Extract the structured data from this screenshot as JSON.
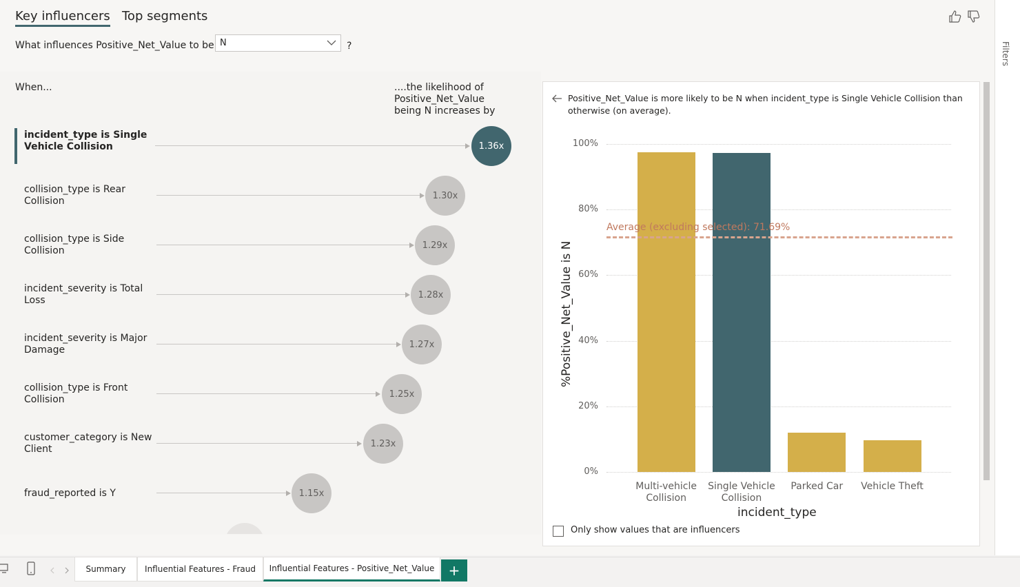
{
  "tabs": [
    {
      "label": "Key influencers",
      "active": true
    },
    {
      "label": "Top segments",
      "active": false
    }
  ],
  "filters_label": "Filters",
  "question": {
    "prefix": "What influences Positive_Net_Value to be",
    "selected": "N",
    "suffix": "?"
  },
  "left_panel": {
    "when_label": "When...",
    "likelihood_label": "....the likelihood of Positive_Net_Value being N increases by"
  },
  "influencers": [
    {
      "label": "incident_type is Single Vehicle Collision",
      "value": "1.36x",
      "selected": true
    },
    {
      "label": "collision_type is Rear Collision",
      "value": "1.30x"
    },
    {
      "label": "collision_type is Side Collision",
      "value": "1.29x"
    },
    {
      "label": "incident_severity is Total Loss",
      "value": "1.28x"
    },
    {
      "label": "incident_severity is Major Damage",
      "value": "1.27x"
    },
    {
      "label": "collision_type is Front Collision",
      "value": "1.25x"
    },
    {
      "label": "customer_category is New Client",
      "value": "1.23x"
    },
    {
      "label": "fraud_reported is Y",
      "value": "1.15x"
    }
  ],
  "detail": {
    "description": "Positive_Net_Value is more likely to be N when incident_type is Single Vehicle Collision than otherwise (on average).",
    "checkbox_label": "Only show values that are influencers"
  },
  "chart_data": {
    "type": "bar",
    "xlabel": "incident_type",
    "ylabel": "%Positive_Net_Value is N",
    "categories": [
      "Multi-vehicle Collision",
      "Single Vehicle Collision",
      "Parked Car",
      "Vehicle Theft"
    ],
    "values": [
      97.5,
      97.3,
      11.9,
      9.6
    ],
    "highlighted": "Single Vehicle Collision",
    "colors": {
      "default": "#d4af4a",
      "highlight": "#41666e",
      "average": "#d8a48e"
    },
    "ylim": [
      0,
      100
    ],
    "yticks": [
      "0%",
      "20%",
      "40%",
      "60%",
      "80%",
      "100%"
    ],
    "average": {
      "label": "Average (excluding selected): 71.69%",
      "value": 71.69
    }
  },
  "page_tabs": [
    {
      "label": "Summary",
      "active": false
    },
    {
      "label": "Influential Features - Fraud",
      "active": false
    },
    {
      "label": "Influential Features - Positive_Net_Value",
      "active": true
    }
  ],
  "add_page_label": "+"
}
